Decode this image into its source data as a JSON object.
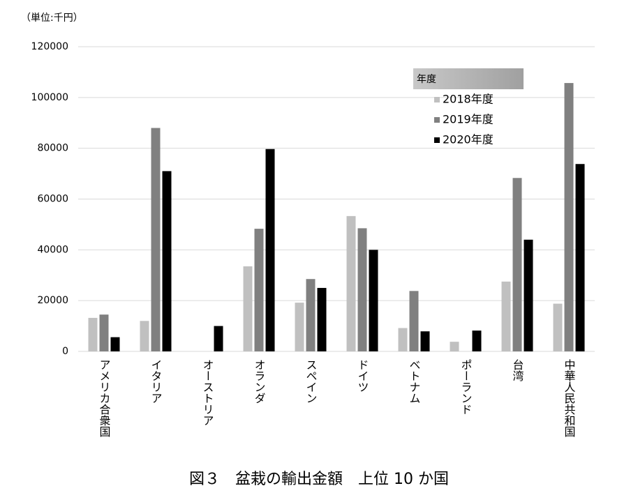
{
  "chart_data": {
    "type": "bar",
    "unit_label": "（単位:千円）",
    "title": "図３　盆栽の輸出金額　上位 10 か国",
    "legend_title": "年度",
    "categories": [
      "アメリカ合衆国",
      "イタリア",
      "オーストリア",
      "オランダ",
      "スペイン",
      "ドイツ",
      "ベトナム",
      "ポーランド",
      "台湾",
      "中華人民共和国"
    ],
    "series": [
      {
        "name": "2018年度",
        "color": "#c0c0c0",
        "values": [
          13200,
          12000,
          null,
          33500,
          19200,
          53300,
          9200,
          3800,
          27500,
          18800
        ]
      },
      {
        "name": "2019年度",
        "color": "#808080",
        "values": [
          14500,
          88000,
          null,
          48300,
          28500,
          48500,
          23800,
          null,
          68300,
          105700
        ]
      },
      {
        "name": "2020年度",
        "color": "#000000",
        "values": [
          5600,
          71000,
          10000,
          79700,
          25000,
          40000,
          7900,
          8200,
          44000,
          73800
        ]
      }
    ],
    "ylim": [
      0,
      120000
    ],
    "yticks": [
      0,
      20000,
      40000,
      60000,
      80000,
      100000,
      120000
    ],
    "grid": true
  }
}
